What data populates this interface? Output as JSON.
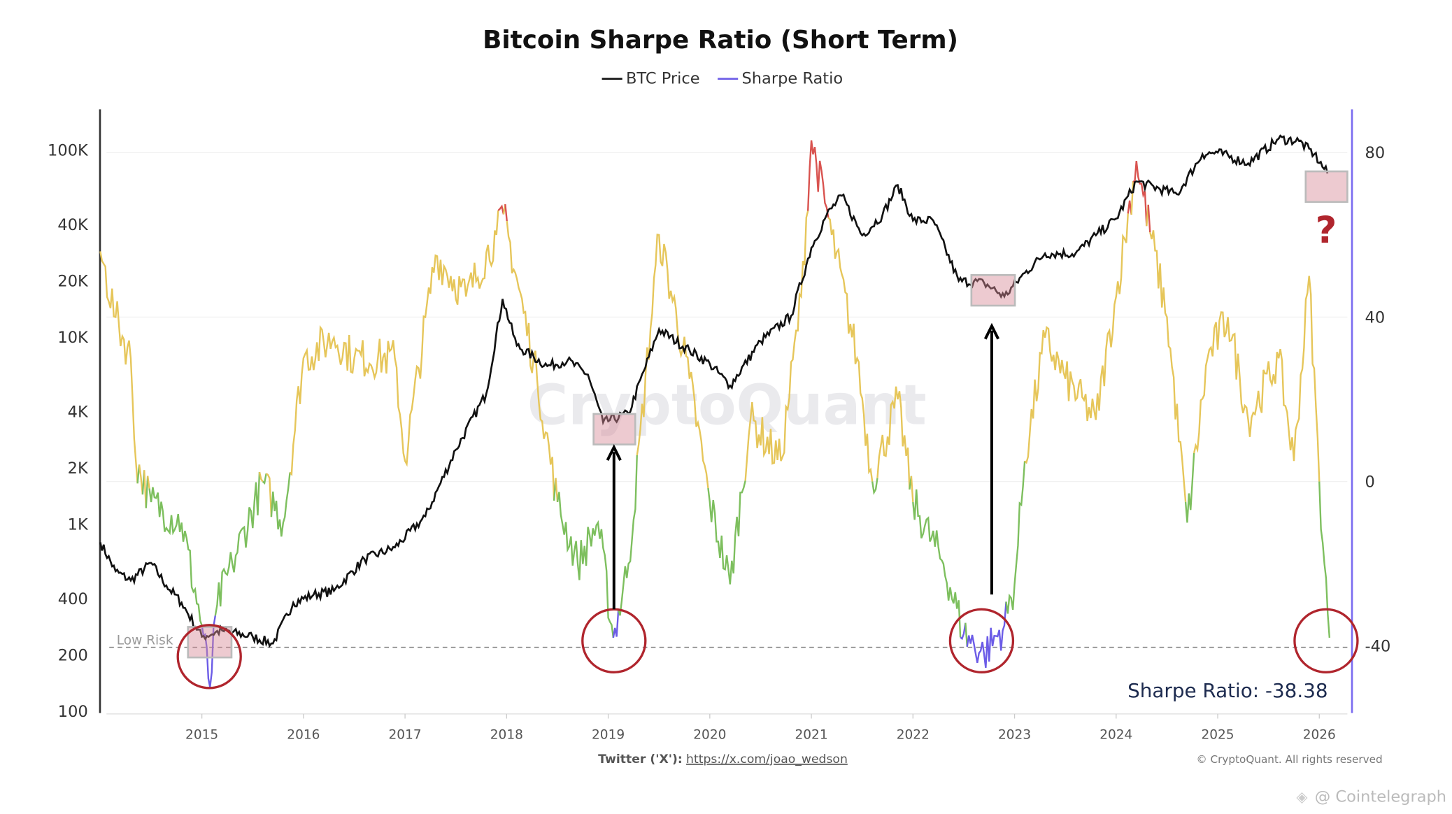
{
  "chart_data": {
    "type": "line",
    "title": "Bitcoin Sharpe Ratio (Short Term)",
    "legend": {
      "placement": "top-center",
      "items": [
        {
          "name": "BTC Price",
          "color": "#111111"
        },
        {
          "name": "Sharpe Ratio",
          "color": "#6c5ce7"
        }
      ]
    },
    "x_axis": {
      "ticks": [
        "2015",
        "2016",
        "2017",
        "2018",
        "2019",
        "2020",
        "2021",
        "2022",
        "2023",
        "2024",
        "2025",
        "2026"
      ],
      "range": [
        2014.0,
        2026.3
      ]
    },
    "y_left": {
      "scale": "log",
      "ticks": [
        "100K",
        "40K",
        "20K",
        "10K",
        "4K",
        "2K",
        "1K",
        "400",
        "200",
        "100"
      ],
      "tick_values": [
        100000,
        40000,
        20000,
        10000,
        4000,
        2000,
        1000,
        400,
        200,
        100
      ],
      "range": [
        100,
        100000
      ]
    },
    "y_right": {
      "scale": "linear",
      "ticks": [
        "80",
        "40",
        "0",
        "-40"
      ],
      "tick_values": [
        80,
        40,
        0,
        -40
      ],
      "range": [
        -56,
        92
      ]
    },
    "grid": true,
    "series": [
      {
        "name": "BTC Price",
        "axis": "left",
        "color": "#111111",
        "x": [
          2014.0,
          2014.15,
          2014.3,
          2014.5,
          2014.65,
          2014.8,
          2015.0,
          2015.2,
          2015.5,
          2015.7,
          2015.9,
          2016.1,
          2016.3,
          2016.6,
          2016.9,
          2017.2,
          2017.5,
          2017.8,
          2017.96,
          2018.1,
          2018.4,
          2018.6,
          2018.8,
          2018.95,
          2019.2,
          2019.5,
          2019.8,
          2020.0,
          2020.2,
          2020.5,
          2020.8,
          2021.0,
          2021.15,
          2021.3,
          2021.5,
          2021.7,
          2021.85,
          2022.0,
          2022.2,
          2022.45,
          2022.7,
          2022.9,
          2023.1,
          2023.3,
          2023.6,
          2023.8,
          2024.0,
          2024.2,
          2024.6,
          2024.85,
          2025.0,
          2025.3,
          2025.6,
          2025.8,
          2025.95,
          2026.08
        ],
        "y": [
          800,
          560,
          500,
          620,
          470,
          380,
          250,
          270,
          250,
          230,
          380,
          420,
          440,
          650,
          750,
          1100,
          2500,
          5000,
          16000,
          9000,
          7000,
          7500,
          6300,
          3500,
          3900,
          11000,
          8500,
          7200,
          5500,
          9500,
          13000,
          30000,
          45000,
          57000,
          35000,
          45000,
          65000,
          42000,
          42000,
          20000,
          19500,
          16500,
          22000,
          28000,
          28000,
          35000,
          43000,
          68000,
          58000,
          95000,
          97000,
          85000,
          115000,
          112000,
          95000,
          75000
        ]
      },
      {
        "name": "Sharpe Ratio",
        "axis": "right",
        "color_bands": {
          "high": "#d9534f",
          "neutral": "#e6c65a",
          "low": "#7dbf5e",
          "extreme_low": "#6c5ce7"
        },
        "x": [
          2014.0,
          2014.15,
          2014.3,
          2014.35,
          2014.5,
          2014.8,
          2015.0,
          2015.08,
          2015.15,
          2015.3,
          2015.6,
          2015.8,
          2016.0,
          2016.3,
          2016.5,
          2016.9,
          2017.0,
          2017.3,
          2017.6,
          2017.9,
          2017.97,
          2018.3,
          2018.5,
          2018.7,
          2018.9,
          2019.05,
          2019.2,
          2019.5,
          2019.8,
          2020.0,
          2020.2,
          2020.4,
          2020.7,
          2020.9,
          2021.0,
          2021.2,
          2021.45,
          2021.6,
          2021.85,
          2022.0,
          2022.3,
          2022.5,
          2022.7,
          2022.9,
          2023.0,
          2023.1,
          2023.3,
          2023.5,
          2023.8,
          2024.0,
          2024.2,
          2024.5,
          2024.7,
          2024.9,
          2025.1,
          2025.3,
          2025.6,
          2025.75,
          2025.9,
          2026.0,
          2026.05,
          2026.1
        ],
        "y": [
          56,
          40,
          30,
          5,
          -5,
          -10,
          -35,
          -50,
          -30,
          -20,
          0,
          -10,
          30,
          35,
          30,
          30,
          5,
          55,
          45,
          60,
          65,
          25,
          -5,
          -20,
          -10,
          -38,
          -20,
          60,
          25,
          -5,
          -25,
          15,
          5,
          45,
          83,
          60,
          30,
          0,
          20,
          -5,
          -20,
          -37,
          -42,
          -35,
          -25,
          5,
          35,
          25,
          15,
          45,
          78,
          40,
          -10,
          30,
          40,
          15,
          30,
          5,
          50,
          0,
          -20,
          -38
        ]
      }
    ],
    "reference_line": {
      "label": "Low Risk",
      "value": -40
    },
    "annotations": {
      "current_value": "Sharpe Ratio: -38.38",
      "question_mark": "?"
    }
  },
  "watermark": "CryptoQuant",
  "footer": {
    "twitter_label": "Twitter ('X'):",
    "twitter_link": "https://x.com/joao_wedson",
    "copyright": "© CryptoQuant. All rights reserved",
    "source_credit": "@ Cointelegraph"
  }
}
